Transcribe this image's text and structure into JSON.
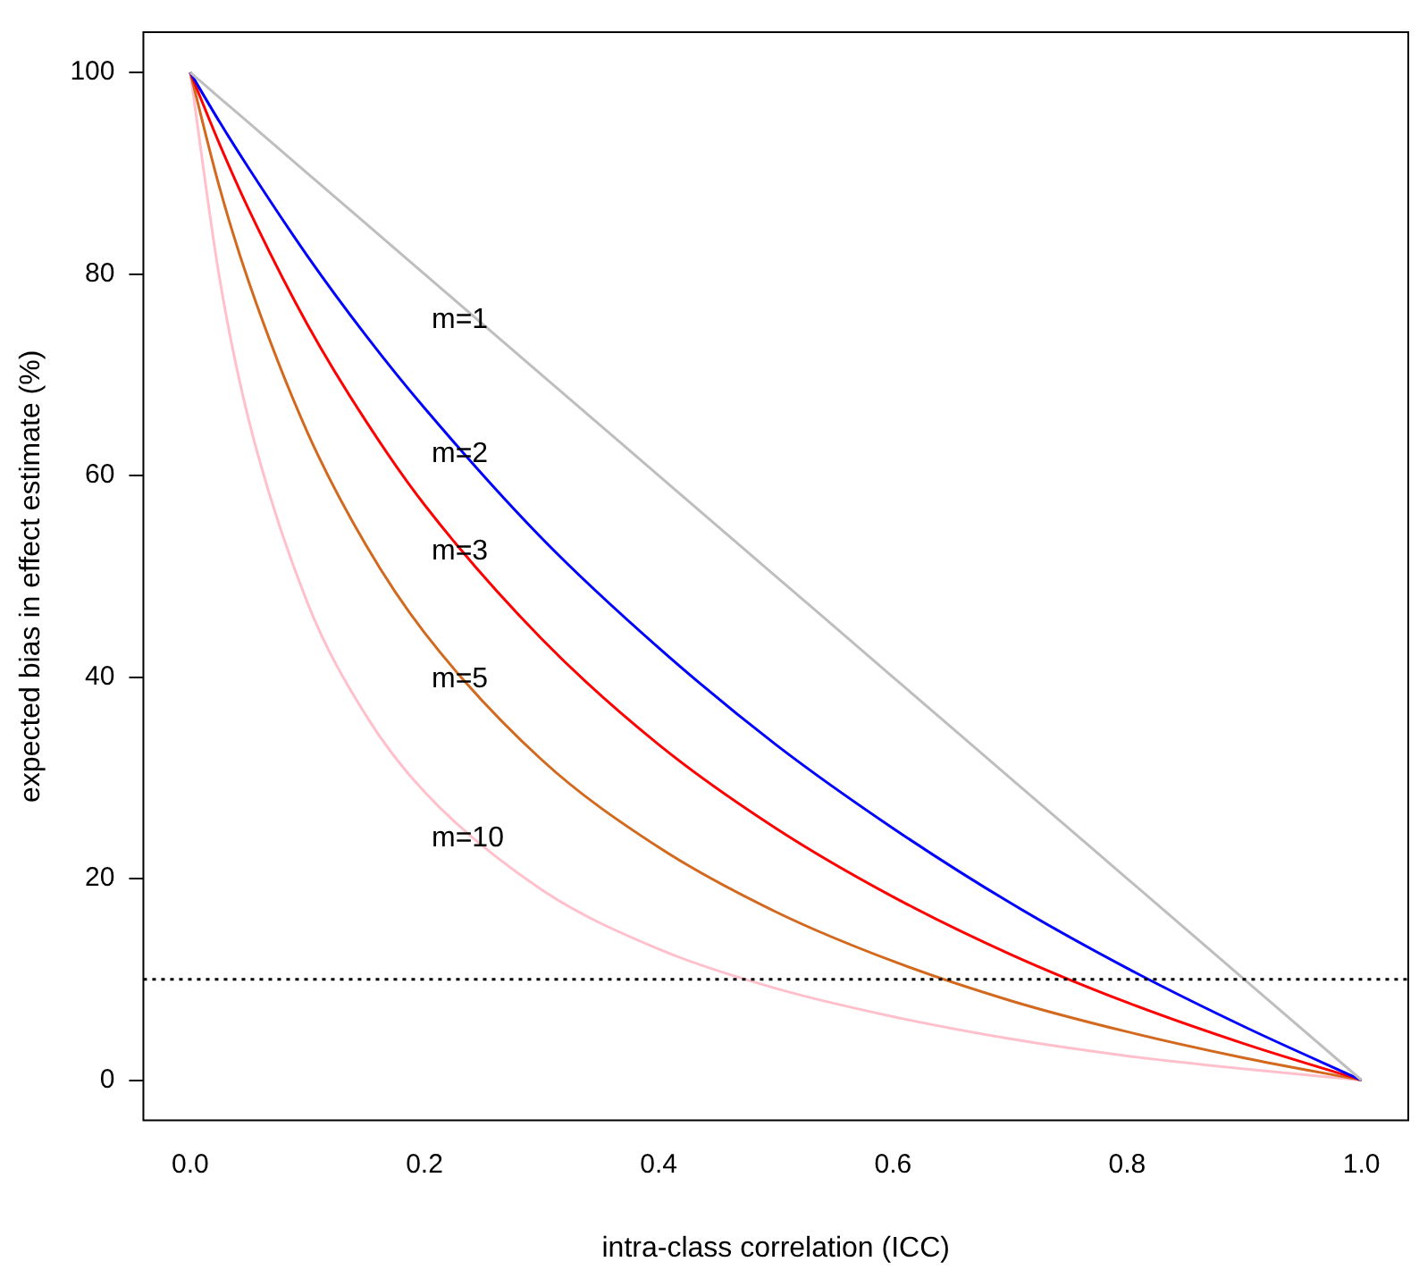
{
  "chart_data": {
    "type": "line",
    "xlabel": "intra-class correlation (ICC)",
    "ylabel": "expected bias in effect estimate (%)",
    "x": [
      0,
      0.025,
      0.05,
      0.1,
      0.15,
      0.2,
      0.3,
      0.4,
      0.5,
      0.6,
      0.7,
      0.8,
      0.9,
      1
    ],
    "series": [
      {
        "name": "m=1",
        "color": "#bebebe",
        "values": [
          100,
          97.5,
          95,
          90,
          85,
          80,
          70,
          60,
          50,
          40,
          30,
          20,
          10,
          0
        ]
      },
      {
        "name": "m=2",
        "color": "#0000ff",
        "values": [
          100,
          95.1,
          90.5,
          81.8,
          73.9,
          66.7,
          53.8,
          42.9,
          33.3,
          25,
          17.6,
          11.1,
          5.3,
          0
        ]
      },
      {
        "name": "m=3",
        "color": "#ff0000",
        "values": [
          100,
          92.9,
          86.4,
          75,
          65.4,
          57.1,
          43.8,
          33.3,
          25,
          18.2,
          12.5,
          7.7,
          3.6,
          0
        ]
      },
      {
        "name": "m=5",
        "color": "#d2691e",
        "values": [
          100,
          88.6,
          79.2,
          64.3,
          53.1,
          44.4,
          31.8,
          23.1,
          16.7,
          11.8,
          7.9,
          4.8,
          2.2,
          0
        ]
      },
      {
        "name": "m=10",
        "color": "#ffc0cb",
        "values": [
          100,
          79.6,
          65.5,
          47.4,
          36.2,
          28.6,
          18.9,
          13,
          9.1,
          6.3,
          4.1,
          2.4,
          1.1,
          0
        ]
      }
    ],
    "ref_lines": [
      {
        "axis": "y",
        "value": 10,
        "color": "#000000",
        "line_style": "dotted"
      }
    ],
    "xlim": [
      -0.04,
      1.04
    ],
    "ylim": [
      -4,
      104
    ],
    "xticks": [
      {
        "value": 0,
        "label": "0.0"
      },
      {
        "value": 0.2,
        "label": "0.2"
      },
      {
        "value": 0.4,
        "label": "0.4"
      },
      {
        "value": 0.6,
        "label": "0.6"
      },
      {
        "value": 0.8,
        "label": "0.8"
      },
      {
        "value": 1,
        "label": "1.0"
      }
    ],
    "yticks": [
      0,
      20,
      40,
      60,
      80,
      100
    ],
    "grid": false,
    "legend": false,
    "marker": "none",
    "line_style": "solid"
  }
}
